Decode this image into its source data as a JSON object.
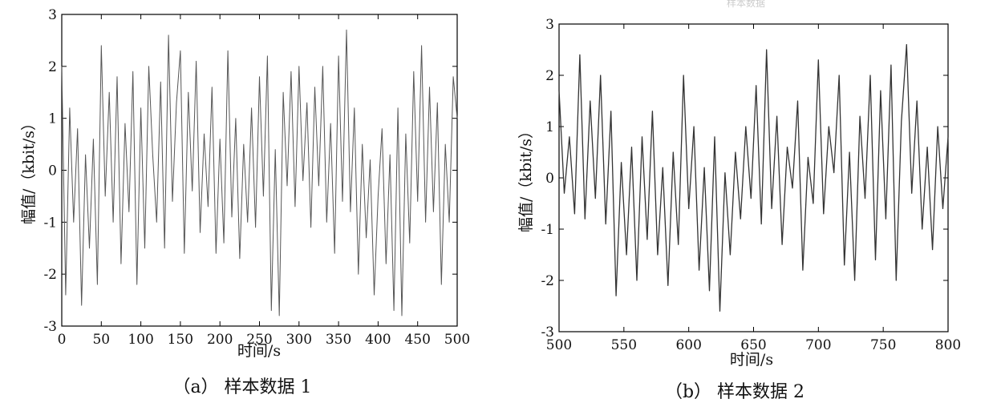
{
  "figure_title_fragment": "样本数据",
  "chart_data": [
    {
      "type": "line",
      "caption": "（a） 样本数据 1",
      "xlabel": "时间/s",
      "ylabel": "幅值/（kbit/s）",
      "xlim": [
        0,
        500
      ],
      "ylim": [
        -3,
        3
      ],
      "xticks": [
        0,
        50,
        100,
        150,
        200,
        250,
        300,
        350,
        400,
        450,
        500
      ],
      "yticks": [
        -3,
        -2,
        -1,
        0,
        1,
        2,
        3
      ],
      "line_color": "#555555",
      "series": [
        {
          "x": [
            0,
            5,
            10,
            15,
            20,
            25,
            30,
            35,
            40,
            45,
            50,
            55,
            60,
            65,
            70,
            75,
            80,
            85,
            90,
            95,
            100,
            105,
            110,
            115,
            120,
            125,
            130,
            135,
            140,
            145,
            150,
            155,
            160,
            165,
            170,
            175,
            180,
            185,
            190,
            195,
            200,
            205,
            210,
            215,
            220,
            225,
            230,
            235,
            240,
            245,
            250,
            255,
            260,
            265,
            270,
            275,
            280,
            285,
            290,
            295,
            300,
            305,
            310,
            315,
            320,
            325,
            330,
            335,
            340,
            345,
            350,
            355,
            360,
            365,
            370,
            375,
            380,
            385,
            390,
            395,
            400,
            405,
            410,
            415,
            420,
            425,
            430,
            435,
            440,
            445,
            450,
            455,
            460,
            465,
            470,
            475,
            480,
            485,
            490,
            495,
            500
          ],
          "values": [
            2.0,
            -2.4,
            1.2,
            -1.0,
            0.8,
            -2.6,
            0.3,
            -1.5,
            0.6,
            -2.2,
            2.4,
            -0.5,
            1.5,
            -1.0,
            1.8,
            -1.8,
            0.9,
            -0.8,
            1.9,
            -2.2,
            1.2,
            -1.5,
            2.0,
            0.3,
            -1.0,
            1.7,
            -1.5,
            2.6,
            -0.6,
            1.3,
            2.3,
            -1.6,
            1.5,
            -0.4,
            2.1,
            -1.2,
            0.7,
            -0.7,
            1.6,
            -1.6,
            0.6,
            -1.4,
            2.3,
            -0.9,
            1.0,
            -1.7,
            0.5,
            -1.0,
            1.2,
            -1.1,
            1.8,
            -0.5,
            2.2,
            -2.7,
            0.4,
            -2.8,
            1.5,
            -0.3,
            1.9,
            -0.7,
            2.0,
            -0.2,
            1.3,
            -1.1,
            1.6,
            -0.3,
            2.0,
            -1.0,
            0.9,
            -1.6,
            2.2,
            -0.6,
            2.7,
            -0.8,
            1.2,
            -2.0,
            0.5,
            -1.3,
            0.2,
            -2.4,
            -0.5,
            0.8,
            -1.8,
            0.3,
            -2.7,
            1.2,
            -2.8,
            0.7,
            -1.4,
            1.9,
            -0.6,
            2.4,
            -1.0,
            1.6,
            -0.8,
            1.3,
            -2.2,
            0.5,
            -1.0,
            1.8,
            1.0
          ]
        }
      ]
    },
    {
      "type": "line",
      "caption": "（b） 样本数据 2",
      "xlabel": "时间/s",
      "ylabel": "幅值/（kbit/s）",
      "xlim": [
        500,
        800
      ],
      "ylim": [
        -3,
        3
      ],
      "xticks": [
        500,
        550,
        600,
        650,
        700,
        750,
        800
      ],
      "yticks": [
        -3,
        -2,
        -1,
        0,
        1,
        2,
        3
      ],
      "line_color": "#333333",
      "series": [
        {
          "x": [
            500,
            504,
            508,
            512,
            516,
            520,
            524,
            528,
            532,
            536,
            540,
            544,
            548,
            552,
            556,
            560,
            564,
            568,
            572,
            576,
            580,
            584,
            588,
            592,
            596,
            600,
            604,
            608,
            612,
            616,
            620,
            624,
            628,
            632,
            636,
            640,
            644,
            648,
            652,
            656,
            660,
            664,
            668,
            672,
            676,
            680,
            684,
            688,
            692,
            696,
            700,
            704,
            708,
            712,
            716,
            720,
            724,
            728,
            732,
            736,
            740,
            744,
            748,
            752,
            756,
            760,
            764,
            768,
            772,
            776,
            780,
            784,
            788,
            792,
            796,
            800
          ],
          "values": [
            1.7,
            -0.3,
            0.8,
            -0.7,
            2.4,
            -0.8,
            1.5,
            -0.4,
            2.0,
            -0.9,
            1.3,
            -2.3,
            0.3,
            -1.5,
            0.6,
            -2.0,
            0.8,
            -1.2,
            1.3,
            -1.5,
            0.2,
            -2.1,
            0.5,
            -1.3,
            2.0,
            -0.6,
            1.0,
            -1.8,
            0.2,
            -2.2,
            0.8,
            -2.6,
            0.1,
            -1.5,
            0.5,
            -0.8,
            1.0,
            -0.4,
            1.8,
            -0.9,
            2.5,
            -0.6,
            1.2,
            -1.3,
            0.6,
            -0.2,
            1.5,
            -1.8,
            0.4,
            -0.5,
            2.3,
            -0.7,
            1.0,
            0.1,
            2.0,
            -1.7,
            0.5,
            -2.0,
            1.2,
            -0.4,
            2.0,
            -1.6,
            1.7,
            -0.8,
            2.2,
            -2.0,
            1.1,
            2.6,
            -0.3,
            1.5,
            -1.0,
            0.6,
            -1.4,
            1.0,
            -0.6,
            0.8
          ]
        }
      ]
    }
  ]
}
